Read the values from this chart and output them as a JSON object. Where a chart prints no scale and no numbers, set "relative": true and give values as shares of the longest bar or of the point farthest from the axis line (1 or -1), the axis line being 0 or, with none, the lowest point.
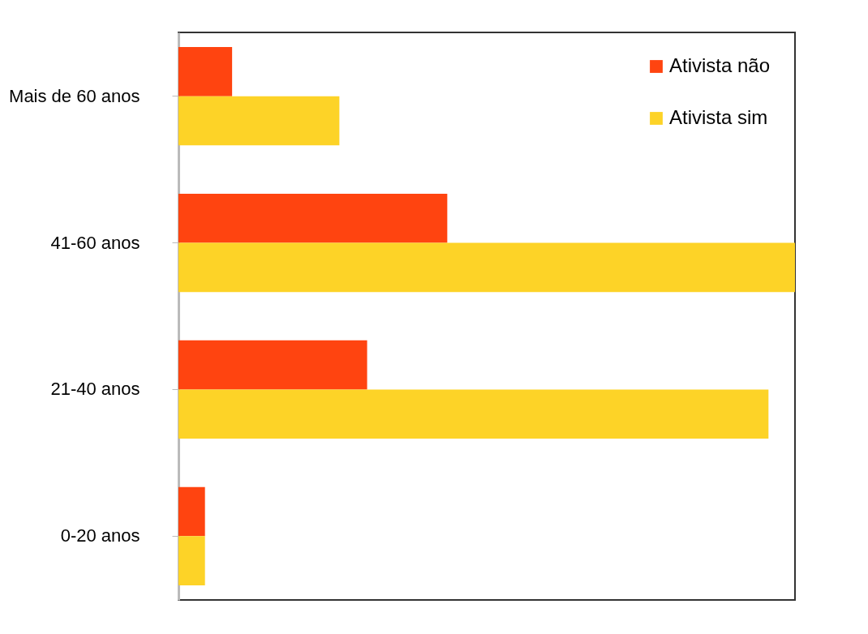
{
  "chart_data": {
    "type": "bar",
    "orientation": "horizontal",
    "relative": true,
    "categories": [
      "Mais de 60 anos",
      "41-60 anos",
      "21-40 anos",
      "0-20 anos"
    ],
    "series": [
      {
        "name": "Ativista não",
        "color": "#ff4410",
        "values": [
          0.087,
          0.436,
          0.306,
          0.043
        ]
      },
      {
        "name": "Ativista sim",
        "color": "#fdd327",
        "values": [
          0.261,
          1,
          0.957,
          0.043
        ]
      }
    ],
    "legend": "top right"
  }
}
